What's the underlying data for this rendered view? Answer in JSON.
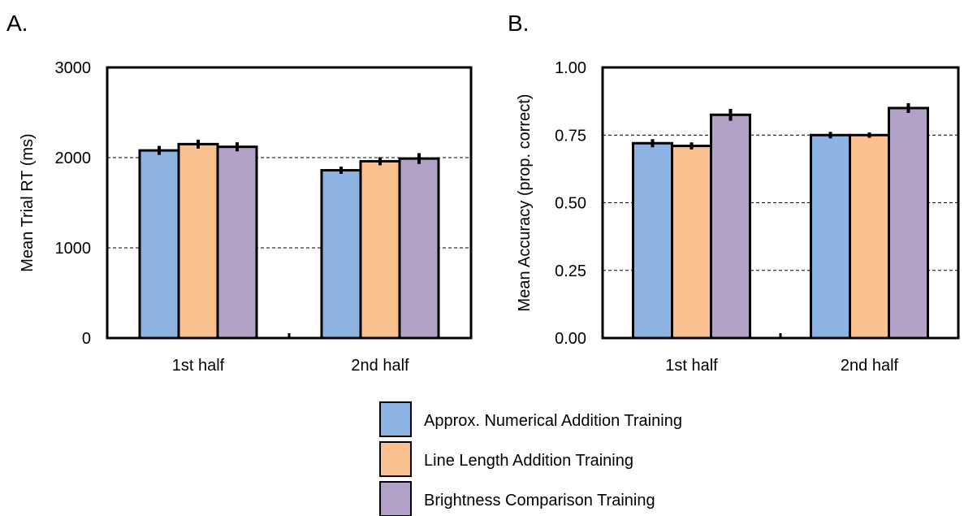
{
  "panels": {
    "a_label": "A.",
    "b_label": "B."
  },
  "legend": [
    {
      "label": "Approx. Numerical Addition Training",
      "color": "#8db3e2"
    },
    {
      "label": "Line Length Addition Training",
      "color": "#fac090"
    },
    {
      "label": "Brightness Comparison Training",
      "color": "#b3a2c7"
    }
  ],
  "chart_data": [
    {
      "type": "bar",
      "panel": "A.",
      "title": "",
      "xlabel": "",
      "ylabel": "Mean Trial RT (ms)",
      "categories": [
        "1st half",
        "2nd half"
      ],
      "ylim": [
        0,
        3000
      ],
      "yticks": [
        0,
        1000,
        2000,
        3000
      ],
      "ytick_labels": [
        "0",
        "1000",
        "2000",
        "3000"
      ],
      "grid": "dashed horizontal at 1000, 2000",
      "series": [
        {
          "name": "Approx. Numerical Addition Training",
          "values": [
            2080,
            1860
          ],
          "errors": [
            50,
            40
          ],
          "color": "#8db3e2"
        },
        {
          "name": "Line Length Addition Training",
          "values": [
            2150,
            1960
          ],
          "errors": [
            50,
            45
          ],
          "color": "#fac090"
        },
        {
          "name": "Brightness Comparison Training",
          "values": [
            2120,
            1990
          ],
          "errors": [
            50,
            60
          ],
          "color": "#b3a2c7"
        }
      ]
    },
    {
      "type": "bar",
      "panel": "B.",
      "title": "",
      "xlabel": "",
      "ylabel": "Mean Accuracy (prop. correct)",
      "categories": [
        "1st half",
        "2nd half"
      ],
      "ylim": [
        0,
        1
      ],
      "yticks": [
        0,
        0.25,
        0.5,
        0.75,
        1.0
      ],
      "ytick_labels": [
        "0.00",
        "0.25",
        "0.50",
        "0.75",
        "1.00"
      ],
      "grid": "dashed horizontal at 0.25, 0.50, 0.75",
      "series": [
        {
          "name": "Approx. Numerical Addition Training",
          "values": [
            0.72,
            0.75
          ],
          "errors": [
            0.015,
            0.012
          ],
          "color": "#8db3e2"
        },
        {
          "name": "Line Length Addition Training",
          "values": [
            0.71,
            0.75
          ],
          "errors": [
            0.013,
            0.01
          ],
          "color": "#fac090"
        },
        {
          "name": "Brightness Comparison Training",
          "values": [
            0.825,
            0.85
          ],
          "errors": [
            0.022,
            0.018
          ],
          "color": "#b3a2c7"
        }
      ]
    }
  ]
}
